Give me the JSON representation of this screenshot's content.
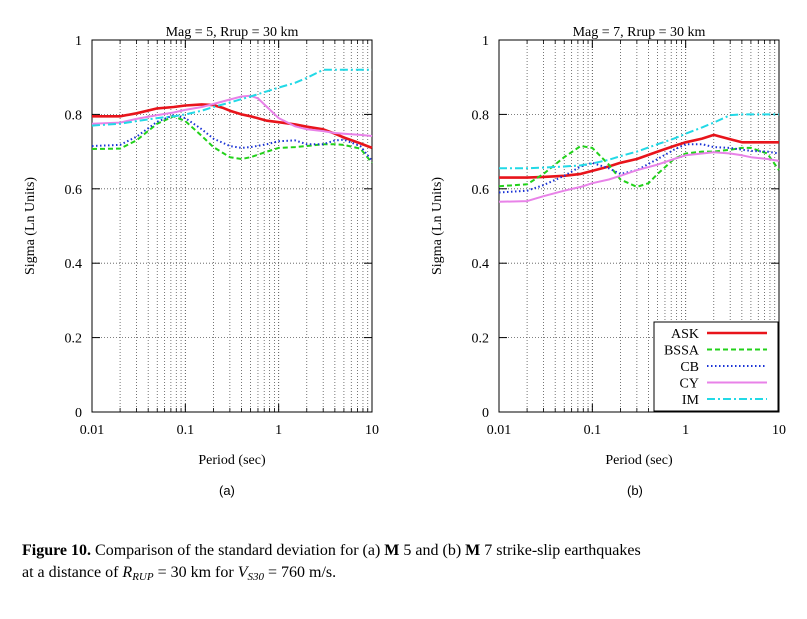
{
  "panels": [
    {
      "label": "(a)",
      "chart_data": {
        "type": "line",
        "title": "Mag = 5, Rrup = 30 km",
        "xlabel": "Period (sec)",
        "ylabel": "Sigma (Ln Units)",
        "xscale": "log",
        "xlim": [
          0.01,
          10
        ],
        "ylim": [
          0,
          1
        ],
        "xticks": [
          "0.01",
          "0.1",
          "1",
          "10"
        ],
        "yticks": [
          "0",
          "0.2",
          "0.4",
          "0.6",
          "0.8",
          "1"
        ],
        "grid": true,
        "legend": "none",
        "series": [
          {
            "name": "ASK",
            "color": "#e8141b",
            "dash": "solid",
            "x": [
              0.01,
              0.02,
              0.03,
              0.05,
              0.075,
              0.1,
              0.15,
              0.2,
              0.25,
              0.3,
              0.4,
              0.5,
              0.75,
              1,
              1.5,
              2,
              3,
              4,
              5,
              7.5,
              10
            ],
            "y": [
              0.795,
              0.795,
              0.803,
              0.816,
              0.82,
              0.824,
              0.827,
              0.825,
              0.818,
              0.81,
              0.8,
              0.795,
              0.783,
              0.779,
              0.773,
              0.767,
              0.76,
              0.748,
              0.738,
              0.722,
              0.71
            ]
          },
          {
            "name": "BSSA",
            "color": "#22d11a",
            "dash": "dashed",
            "x": [
              0.01,
              0.02,
              0.03,
              0.05,
              0.075,
              0.1,
              0.15,
              0.2,
              0.3,
              0.4,
              0.5,
              0.75,
              1,
              1.5,
              2,
              3,
              4,
              5,
              7.5,
              10
            ],
            "y": [
              0.707,
              0.708,
              0.73,
              0.775,
              0.795,
              0.782,
              0.742,
              0.712,
              0.685,
              0.68,
              0.685,
              0.7,
              0.71,
              0.712,
              0.715,
              0.72,
              0.72,
              0.718,
              0.708,
              0.67
            ]
          },
          {
            "name": "CB",
            "color": "#1a33d6",
            "dash": "dotted",
            "x": [
              0.01,
              0.02,
              0.03,
              0.05,
              0.075,
              0.1,
              0.15,
              0.2,
              0.3,
              0.4,
              0.5,
              0.75,
              1,
              1.5,
              2,
              3,
              4,
              5,
              7.5,
              10
            ],
            "y": [
              0.715,
              0.718,
              0.74,
              0.78,
              0.798,
              0.79,
              0.76,
              0.735,
              0.715,
              0.71,
              0.712,
              0.72,
              0.728,
              0.73,
              0.72,
              0.72,
              0.73,
              0.732,
              0.715,
              0.675
            ]
          },
          {
            "name": "CY",
            "color": "#e882e8",
            "dash": "solid",
            "x": [
              0.01,
              0.02,
              0.03,
              0.05,
              0.075,
              0.1,
              0.15,
              0.2,
              0.3,
              0.4,
              0.5,
              0.6,
              0.75,
              1,
              1.5,
              2,
              3,
              4,
              5,
              7.5,
              10
            ],
            "y": [
              0.775,
              0.778,
              0.788,
              0.798,
              0.805,
              0.812,
              0.82,
              0.828,
              0.84,
              0.848,
              0.85,
              0.843,
              0.82,
              0.79,
              0.768,
              0.76,
              0.755,
              0.75,
              0.748,
              0.745,
              0.742
            ]
          },
          {
            "name": "IM",
            "color": "#22d9e6",
            "dash": "dashdot",
            "x": [
              0.01,
              0.02,
              0.03,
              0.05,
              0.075,
              0.1,
              0.15,
              0.2,
              0.3,
              0.5,
              0.75,
              1,
              1.5,
              2,
              3,
              4,
              5,
              7.5,
              10
            ],
            "y": [
              0.77,
              0.775,
              0.782,
              0.79,
              0.795,
              0.8,
              0.81,
              0.82,
              0.832,
              0.848,
              0.862,
              0.872,
              0.885,
              0.898,
              0.92,
              0.92,
              0.92,
              0.92,
              0.92
            ]
          }
        ]
      }
    },
    {
      "label": "(b)",
      "chart_data": {
        "type": "line",
        "title": "Mag = 7, Rrup = 30 km",
        "xlabel": "Period (sec)",
        "ylabel": "Sigma (Ln Units)",
        "xscale": "log",
        "xlim": [
          0.01,
          10
        ],
        "ylim": [
          0,
          1
        ],
        "xticks": [
          "0.01",
          "0.1",
          "1",
          "10"
        ],
        "yticks": [
          "0",
          "0.2",
          "0.4",
          "0.6",
          "0.8",
          "1"
        ],
        "grid": true,
        "legend": "bottom-right",
        "series": [
          {
            "name": "ASK",
            "color": "#e8141b",
            "dash": "solid",
            "x": [
              0.01,
              0.02,
              0.03,
              0.05,
              0.075,
              0.1,
              0.15,
              0.2,
              0.3,
              0.5,
              0.75,
              1,
              1.5,
              2,
              3,
              4,
              5,
              7.5,
              10
            ],
            "y": [
              0.63,
              0.63,
              0.632,
              0.635,
              0.64,
              0.648,
              0.66,
              0.67,
              0.68,
              0.7,
              0.715,
              0.725,
              0.735,
              0.745,
              0.733,
              0.725,
              0.725,
              0.725,
              0.725
            ]
          },
          {
            "name": "BSSA",
            "color": "#22d11a",
            "dash": "dashed",
            "x": [
              0.01,
              0.02,
              0.03,
              0.05,
              0.075,
              0.1,
              0.15,
              0.2,
              0.3,
              0.4,
              0.5,
              0.75,
              1,
              1.5,
              2,
              3,
              4,
              5,
              7.5,
              10
            ],
            "y": [
              0.607,
              0.612,
              0.64,
              0.685,
              0.715,
              0.71,
              0.665,
              0.625,
              0.605,
              0.615,
              0.64,
              0.68,
              0.695,
              0.7,
              0.7,
              0.705,
              0.71,
              0.71,
              0.695,
              0.65
            ]
          },
          {
            "name": "CB",
            "color": "#1a33d6",
            "dash": "dotted",
            "x": [
              0.01,
              0.02,
              0.03,
              0.05,
              0.075,
              0.1,
              0.15,
              0.2,
              0.3,
              0.5,
              0.75,
              1,
              1.5,
              2,
              3,
              4,
              5,
              7.5,
              10
            ],
            "y": [
              0.59,
              0.595,
              0.61,
              0.635,
              0.66,
              0.67,
              0.655,
              0.64,
              0.65,
              0.68,
              0.705,
              0.72,
              0.72,
              0.712,
              0.71,
              0.705,
              0.702,
              0.7,
              0.695
            ]
          },
          {
            "name": "CY",
            "color": "#e882e8",
            "dash": "solid",
            "x": [
              0.01,
              0.02,
              0.03,
              0.05,
              0.075,
              0.1,
              0.15,
              0.2,
              0.3,
              0.5,
              0.75,
              1,
              1.5,
              2,
              3,
              4,
              5,
              7.5,
              10
            ],
            "y": [
              0.565,
              0.567,
              0.58,
              0.595,
              0.605,
              0.615,
              0.625,
              0.635,
              0.65,
              0.665,
              0.68,
              0.69,
              0.695,
              0.698,
              0.695,
              0.69,
              0.685,
              0.68,
              0.675
            ]
          },
          {
            "name": "IM",
            "color": "#22d9e6",
            "dash": "dashdot",
            "x": [
              0.01,
              0.02,
              0.03,
              0.05,
              0.075,
              0.1,
              0.15,
              0.2,
              0.3,
              0.5,
              0.75,
              1,
              1.5,
              2,
              3,
              4,
              5,
              7.5,
              10
            ],
            "y": [
              0.655,
              0.655,
              0.657,
              0.66,
              0.663,
              0.668,
              0.678,
              0.688,
              0.7,
              0.72,
              0.735,
              0.748,
              0.765,
              0.778,
              0.798,
              0.8,
              0.8,
              0.8,
              0.8
            ]
          }
        ]
      }
    }
  ],
  "caption": {
    "fig_label": "Figure 10.",
    "line1_text1": " Comparison of the standard deviation for (a) ",
    "m1": "M",
    "line1_text2": " 5 and (b) ",
    "m2": "M",
    "line1_text3": " 7 strike-slip earthquakes",
    "line2_text1": "at a distance of ",
    "r_main": "R",
    "r_sub": "RUP",
    "line2_text2": " = 30 km for ",
    "v_main": "V",
    "v_sub": "S30",
    "line2_text3": " = 760 m/s."
  }
}
